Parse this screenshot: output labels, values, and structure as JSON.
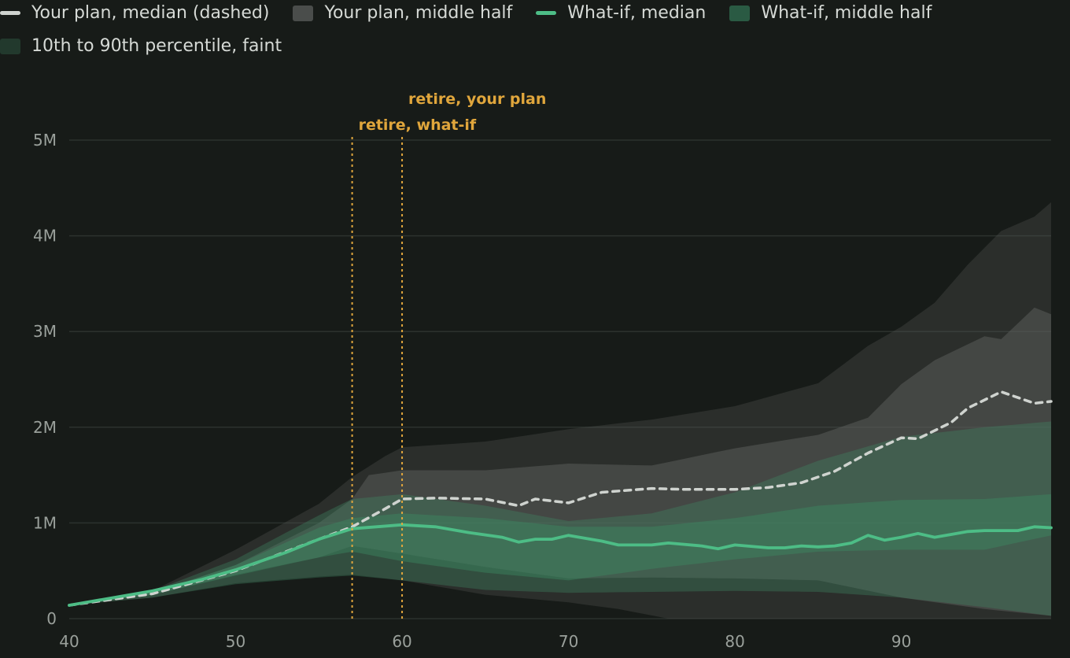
{
  "legend": {
    "items": [
      {
        "label": "Your plan, median (dashed)",
        "kind": "line",
        "color": "#cfd3cf"
      },
      {
        "label": "Your plan, middle half",
        "kind": "box",
        "color": "#4a4d4b"
      },
      {
        "label": "What-if, median",
        "kind": "line",
        "color": "#4dbd86"
      },
      {
        "label": "What-if, middle half",
        "kind": "box",
        "color": "#2a5a43"
      },
      {
        "label": "10th to 90th percentile, faint",
        "kind": "box",
        "color": "#22392d"
      }
    ]
  },
  "chart_data": {
    "type": "area",
    "x_ticks": [
      "40",
      "50",
      "60",
      "70",
      "80",
      "90"
    ],
    "y_ticks": [
      "0",
      "1M",
      "2M",
      "3M",
      "4M",
      "5M"
    ],
    "xlim": [
      40,
      99
    ],
    "ylim": [
      0,
      5000000
    ],
    "grid": true,
    "markers": [
      {
        "label": "retire, what-if",
        "age": 57,
        "color": "#e0a63c"
      },
      {
        "label": "retire, your plan",
        "age": 60,
        "color": "#e0a63c"
      }
    ],
    "your_plan": {
      "p10": [
        [
          40,
          140000
        ],
        [
          45,
          220000
        ],
        [
          50,
          370000
        ],
        [
          55,
          440000
        ],
        [
          57,
          460000
        ],
        [
          60,
          400000
        ],
        [
          65,
          250000
        ],
        [
          70,
          170000
        ],
        [
          73,
          100000
        ],
        [
          76,
          0
        ],
        [
          99,
          0
        ]
      ],
      "p90": [
        [
          40,
          140000
        ],
        [
          45,
          290000
        ],
        [
          50,
          720000
        ],
        [
          55,
          1200000
        ],
        [
          57,
          1480000
        ],
        [
          59,
          1700000
        ],
        [
          60,
          1790000
        ],
        [
          65,
          1850000
        ],
        [
          70,
          1980000
        ],
        [
          75,
          2080000
        ],
        [
          80,
          2220000
        ],
        [
          85,
          2460000
        ],
        [
          88,
          2850000
        ],
        [
          90,
          3050000
        ],
        [
          92,
          3300000
        ],
        [
          94,
          3700000
        ],
        [
          96,
          4050000
        ],
        [
          98,
          4200000
        ],
        [
          99,
          4350000
        ]
      ],
      "p25": [
        [
          40,
          140000
        ],
        [
          45,
          250000
        ],
        [
          50,
          460000
        ],
        [
          55,
          640000
        ],
        [
          57,
          760000
        ],
        [
          60,
          680000
        ],
        [
          65,
          540000
        ],
        [
          70,
          420000
        ],
        [
          75,
          430000
        ],
        [
          80,
          420000
        ],
        [
          85,
          400000
        ],
        [
          90,
          220000
        ],
        [
          95,
          100000
        ],
        [
          99,
          30000
        ]
      ],
      "p75": [
        [
          40,
          140000
        ],
        [
          45,
          270000
        ],
        [
          50,
          560000
        ],
        [
          55,
          1000000
        ],
        [
          57,
          1250000
        ],
        [
          58,
          1500000
        ],
        [
          60,
          1550000
        ],
        [
          65,
          1550000
        ],
        [
          70,
          1620000
        ],
        [
          75,
          1600000
        ],
        [
          80,
          1780000
        ],
        [
          85,
          1920000
        ],
        [
          88,
          2100000
        ],
        [
          90,
          2450000
        ],
        [
          92,
          2700000
        ],
        [
          95,
          2950000
        ],
        [
          96,
          2920000
        ],
        [
          98,
          3250000
        ],
        [
          99,
          3180000
        ]
      ],
      "median": [
        [
          40,
          140000
        ],
        [
          45,
          260000
        ],
        [
          50,
          500000
        ],
        [
          55,
          830000
        ],
        [
          57,
          960000
        ],
        [
          59,
          1150000
        ],
        [
          60,
          1250000
        ],
        [
          62,
          1260000
        ],
        [
          65,
          1250000
        ],
        [
          67,
          1180000
        ],
        [
          68,
          1250000
        ],
        [
          70,
          1210000
        ],
        [
          72,
          1320000
        ],
        [
          75,
          1360000
        ],
        [
          77,
          1350000
        ],
        [
          80,
          1350000
        ],
        [
          82,
          1370000
        ],
        [
          84,
          1420000
        ],
        [
          86,
          1540000
        ],
        [
          88,
          1730000
        ],
        [
          90,
          1890000
        ],
        [
          91,
          1880000
        ],
        [
          93,
          2050000
        ],
        [
          94,
          2200000
        ],
        [
          96,
          2370000
        ],
        [
          98,
          2250000
        ],
        [
          99,
          2270000
        ]
      ]
    },
    "what_if": {
      "p10": [
        [
          40,
          140000
        ],
        [
          45,
          220000
        ],
        [
          50,
          360000
        ],
        [
          55,
          430000
        ],
        [
          57,
          450000
        ],
        [
          60,
          400000
        ],
        [
          65,
          300000
        ],
        [
          70,
          270000
        ],
        [
          75,
          280000
        ],
        [
          80,
          290000
        ],
        [
          85,
          280000
        ],
        [
          90,
          220000
        ],
        [
          95,
          120000
        ],
        [
          99,
          30000
        ]
      ],
      "p90": [
        [
          40,
          140000
        ],
        [
          45,
          290000
        ],
        [
          50,
          620000
        ],
        [
          55,
          1080000
        ],
        [
          57,
          1250000
        ],
        [
          60,
          1300000
        ],
        [
          65,
          1180000
        ],
        [
          70,
          1020000
        ],
        [
          75,
          1100000
        ],
        [
          80,
          1320000
        ],
        [
          85,
          1650000
        ],
        [
          90,
          1900000
        ],
        [
          95,
          2000000
        ],
        [
          99,
          2060000
        ]
      ],
      "p25": [
        [
          40,
          140000
        ],
        [
          45,
          250000
        ],
        [
          50,
          450000
        ],
        [
          55,
          640000
        ],
        [
          57,
          700000
        ],
        [
          60,
          600000
        ],
        [
          65,
          480000
        ],
        [
          70,
          400000
        ],
        [
          75,
          520000
        ],
        [
          80,
          620000
        ],
        [
          85,
          700000
        ],
        [
          90,
          720000
        ],
        [
          95,
          720000
        ],
        [
          99,
          870000
        ]
      ],
      "p75": [
        [
          40,
          140000
        ],
        [
          45,
          270000
        ],
        [
          50,
          560000
        ],
        [
          55,
          950000
        ],
        [
          57,
          1050000
        ],
        [
          60,
          1100000
        ],
        [
          65,
          1050000
        ],
        [
          70,
          960000
        ],
        [
          75,
          960000
        ],
        [
          80,
          1050000
        ],
        [
          85,
          1180000
        ],
        [
          90,
          1240000
        ],
        [
          95,
          1250000
        ],
        [
          99,
          1300000
        ]
      ],
      "median": [
        [
          40,
          140000
        ],
        [
          42,
          200000
        ],
        [
          45,
          290000
        ],
        [
          48,
          410000
        ],
        [
          50,
          510000
        ],
        [
          53,
          690000
        ],
        [
          55,
          830000
        ],
        [
          57,
          940000
        ],
        [
          60,
          980000
        ],
        [
          62,
          960000
        ],
        [
          64,
          900000
        ],
        [
          66,
          850000
        ],
        [
          67,
          800000
        ],
        [
          68,
          830000
        ],
        [
          69,
          830000
        ],
        [
          70,
          870000
        ],
        [
          71,
          840000
        ],
        [
          72,
          810000
        ],
        [
          73,
          770000
        ],
        [
          75,
          770000
        ],
        [
          76,
          790000
        ],
        [
          78,
          760000
        ],
        [
          79,
          730000
        ],
        [
          80,
          770000
        ],
        [
          82,
          740000
        ],
        [
          83,
          740000
        ],
        [
          84,
          760000
        ],
        [
          85,
          750000
        ],
        [
          86,
          760000
        ],
        [
          87,
          790000
        ],
        [
          88,
          870000
        ],
        [
          89,
          820000
        ],
        [
          90,
          850000
        ],
        [
          91,
          890000
        ],
        [
          92,
          850000
        ],
        [
          93,
          880000
        ],
        [
          94,
          910000
        ],
        [
          95,
          920000
        ],
        [
          96,
          920000
        ],
        [
          97,
          920000
        ],
        [
          98,
          960000
        ],
        [
          99,
          950000
        ]
      ]
    }
  }
}
